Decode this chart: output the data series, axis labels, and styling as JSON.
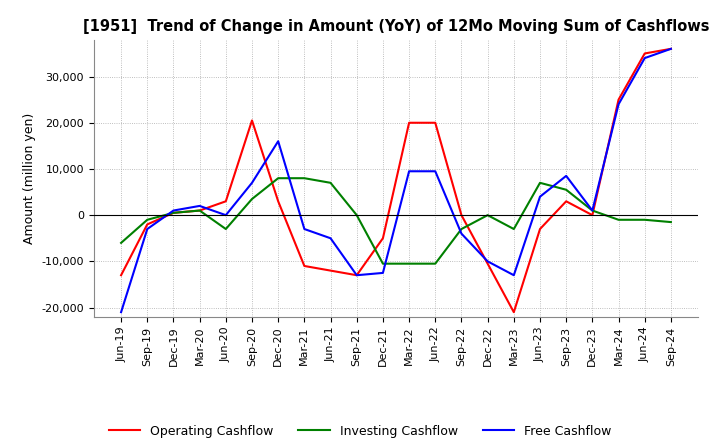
{
  "title": "[1951]  Trend of Change in Amount (YoY) of 12Mo Moving Sum of Cashflows",
  "ylabel": "Amount (million yen)",
  "ylim": [
    -22000,
    38000
  ],
  "yticks": [
    -20000,
    -10000,
    0,
    10000,
    20000,
    30000
  ],
  "x_labels": [
    "Jun-19",
    "Sep-19",
    "Dec-19",
    "Mar-20",
    "Jun-20",
    "Sep-20",
    "Dec-20",
    "Mar-21",
    "Jun-21",
    "Sep-21",
    "Dec-21",
    "Mar-22",
    "Jun-22",
    "Sep-22",
    "Dec-22",
    "Mar-23",
    "Jun-23",
    "Sep-23",
    "Dec-23",
    "Mar-24",
    "Jun-24",
    "Sep-24"
  ],
  "operating": [
    -13000,
    -2000,
    500,
    1000,
    3000,
    20500,
    3000,
    -11000,
    -12000,
    -13000,
    -5000,
    20000,
    20000,
    0,
    -10500,
    -21000,
    -3000,
    3000,
    0,
    25000,
    35000,
    36000
  ],
  "investing": [
    -6000,
    -1000,
    500,
    1000,
    -3000,
    3500,
    8000,
    8000,
    7000,
    0,
    -10500,
    -10500,
    -10500,
    -3000,
    0,
    -3000,
    7000,
    5500,
    1000,
    -1000,
    -1000,
    -1500
  ],
  "free": [
    -21000,
    -3000,
    1000,
    2000,
    0,
    7000,
    16000,
    -3000,
    -5000,
    -13000,
    -12500,
    9500,
    9500,
    -4000,
    -10000,
    -13000,
    4000,
    8500,
    1000,
    24000,
    34000,
    36000
  ],
  "operating_color": "#ff0000",
  "investing_color": "#008000",
  "free_color": "#0000ff",
  "background_color": "#ffffff",
  "grid_color": "#aaaaaa"
}
